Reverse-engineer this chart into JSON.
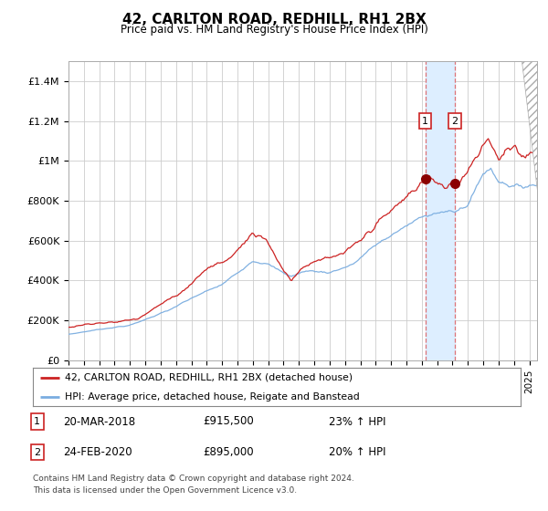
{
  "title": "42, CARLTON ROAD, REDHILL, RH1 2BX",
  "subtitle": "Price paid vs. HM Land Registry's House Price Index (HPI)",
  "legend_line1": "42, CARLTON ROAD, REDHILL, RH1 2BX (detached house)",
  "legend_line2": "HPI: Average price, detached house, Reigate and Banstead",
  "footer_line1": "Contains HM Land Registry data © Crown copyright and database right 2024.",
  "footer_line2": "This data is licensed under the Open Government Licence v3.0.",
  "sale1_label": "1",
  "sale1_date": "20-MAR-2018",
  "sale1_price": "£915,500",
  "sale1_hpi": "23% ↑ HPI",
  "sale2_label": "2",
  "sale2_date": "24-FEB-2020",
  "sale2_price": "£895,000",
  "sale2_hpi": "20% ↑ HPI",
  "sale1_year": 2018.22,
  "sale2_year": 2020.15,
  "hpi_color": "#7aade0",
  "price_color": "#cc2222",
  "bg_color": "#ffffff",
  "plot_bg_color": "#ffffff",
  "grid_color": "#cccccc",
  "highlight_color": "#ddeeff",
  "ylim": [
    0,
    1500000
  ],
  "yticks": [
    0,
    200000,
    400000,
    600000,
    800000,
    1000000,
    1200000,
    1400000
  ],
  "ytick_labels": [
    "£0",
    "£200K",
    "£400K",
    "£600K",
    "£800K",
    "£1M",
    "£1.2M",
    "£1.4M"
  ],
  "xstart": 1995,
  "xend": 2025
}
